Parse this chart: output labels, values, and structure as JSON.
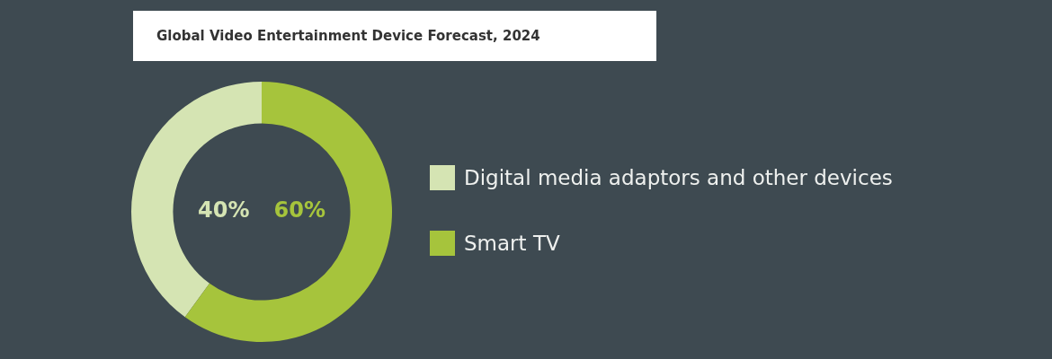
{
  "chart_data": {
    "type": "donut",
    "title": "Global Video Entertainment Device Forecast, 2024",
    "categories": [
      "Digital media adaptors and other devices",
      "Smart TV"
    ],
    "values": [
      40,
      60
    ],
    "colors": [
      "#d5e4b3",
      "#a6c43c"
    ],
    "value_labels": [
      "40%",
      "60%"
    ],
    "legend": "right"
  }
}
